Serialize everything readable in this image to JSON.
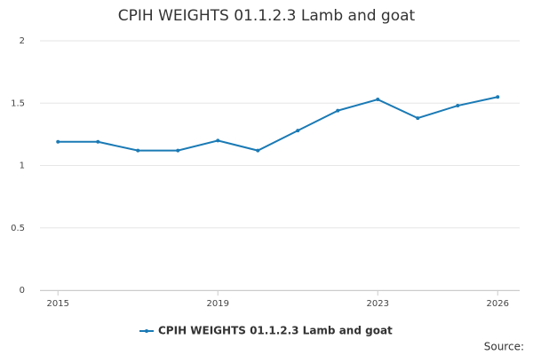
{
  "chart_data": {
    "type": "line",
    "title": "CPIH WEIGHTS 01.1.2.3 Lamb and goat",
    "x": [
      2015,
      2016,
      2017,
      2018,
      2019,
      2020,
      2021,
      2022,
      2023,
      2024,
      2025,
      2026
    ],
    "series": [
      {
        "name": "CPIH WEIGHTS 01.1.2.3 Lamb and goat",
        "color": "#1a7ab5",
        "values": [
          1.19,
          1.19,
          1.12,
          1.12,
          1.2,
          1.12,
          1.28,
          1.44,
          1.53,
          1.38,
          1.48,
          1.55
        ]
      }
    ],
    "xlim": [
      2014.55,
      2026.55
    ],
    "xticks": [
      2015,
      2019,
      2023,
      2026
    ],
    "ylim": [
      0,
      2
    ],
    "yticks": [
      0,
      0.5,
      1,
      1.5,
      2
    ],
    "grid": true,
    "legend": "bottom",
    "source": "Source:"
  }
}
